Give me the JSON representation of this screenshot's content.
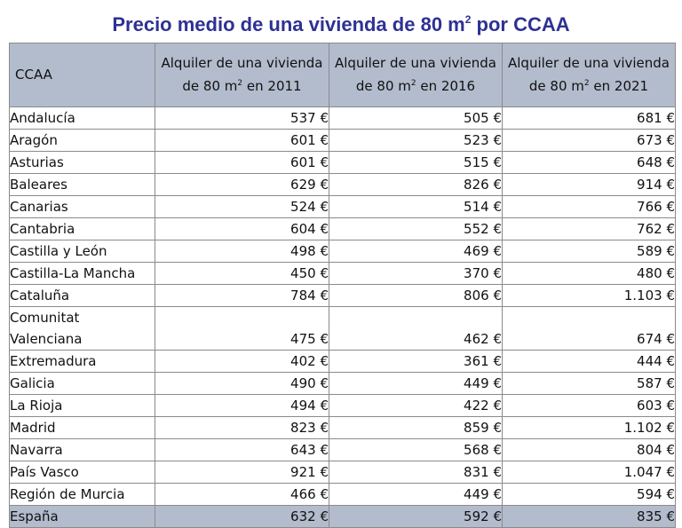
{
  "title": {
    "main": "Precio medio de una vivienda de 80 m",
    "sup": "2",
    "rest": " por CCAA"
  },
  "table": {
    "columns": [
      {
        "pre": "CCAA"
      },
      {
        "pre": "Alquiler de una vivienda de 80 m",
        "sup": "2",
        "post": " en 2011"
      },
      {
        "pre": "Alquiler de una vivienda de 80 m",
        "sup": "2",
        "post": " en 2016"
      },
      {
        "pre": "Alquiler de una vivienda de 80 m",
        "sup": "2",
        "post": " en 2021"
      }
    ],
    "rows": [
      [
        "Andalucía",
        "537 €",
        "505 €",
        "681 €"
      ],
      [
        "Aragón",
        "601 €",
        "523 €",
        "673 €"
      ],
      [
        "Asturias",
        "601 €",
        "515 €",
        "648 €"
      ],
      [
        "Baleares",
        "629 €",
        "826 €",
        "914 €"
      ],
      [
        "Canarias",
        "524 €",
        "514 €",
        "766 €"
      ],
      [
        "Cantabria",
        "604 €",
        "552 €",
        "762 €"
      ],
      [
        "Castilla y León",
        "498 €",
        "469 €",
        "589 €"
      ],
      [
        "Castilla-La Mancha",
        "450 €",
        "370 €",
        "480 €"
      ],
      [
        "Cataluña",
        "784 €",
        "806 €",
        "1.103 €"
      ],
      [
        "Comunitat Valenciana",
        "475 €",
        "462 €",
        "674 €"
      ],
      [
        "Extremadura",
        "402 €",
        "361 €",
        "444 €"
      ],
      [
        "Galicia",
        "490 €",
        "449 €",
        "587 €"
      ],
      [
        "La Rioja",
        "494 €",
        "422 €",
        "603 €"
      ],
      [
        "Madrid",
        "823 €",
        "859 €",
        "1.102 €"
      ],
      [
        "Navarra",
        "643 €",
        "568 €",
        "804 €"
      ],
      [
        "País Vasco",
        "921 €",
        "831 €",
        "1.047 €"
      ],
      [
        "Región de Murcia",
        "466 €",
        "449 €",
        "594 €"
      ]
    ],
    "total": [
      "España",
      "632 €",
      "592 €",
      "835 €"
    ]
  },
  "colors": {
    "title": "#2e3192",
    "header_bg": "#b3bccd",
    "border": "#8a8a8a"
  }
}
